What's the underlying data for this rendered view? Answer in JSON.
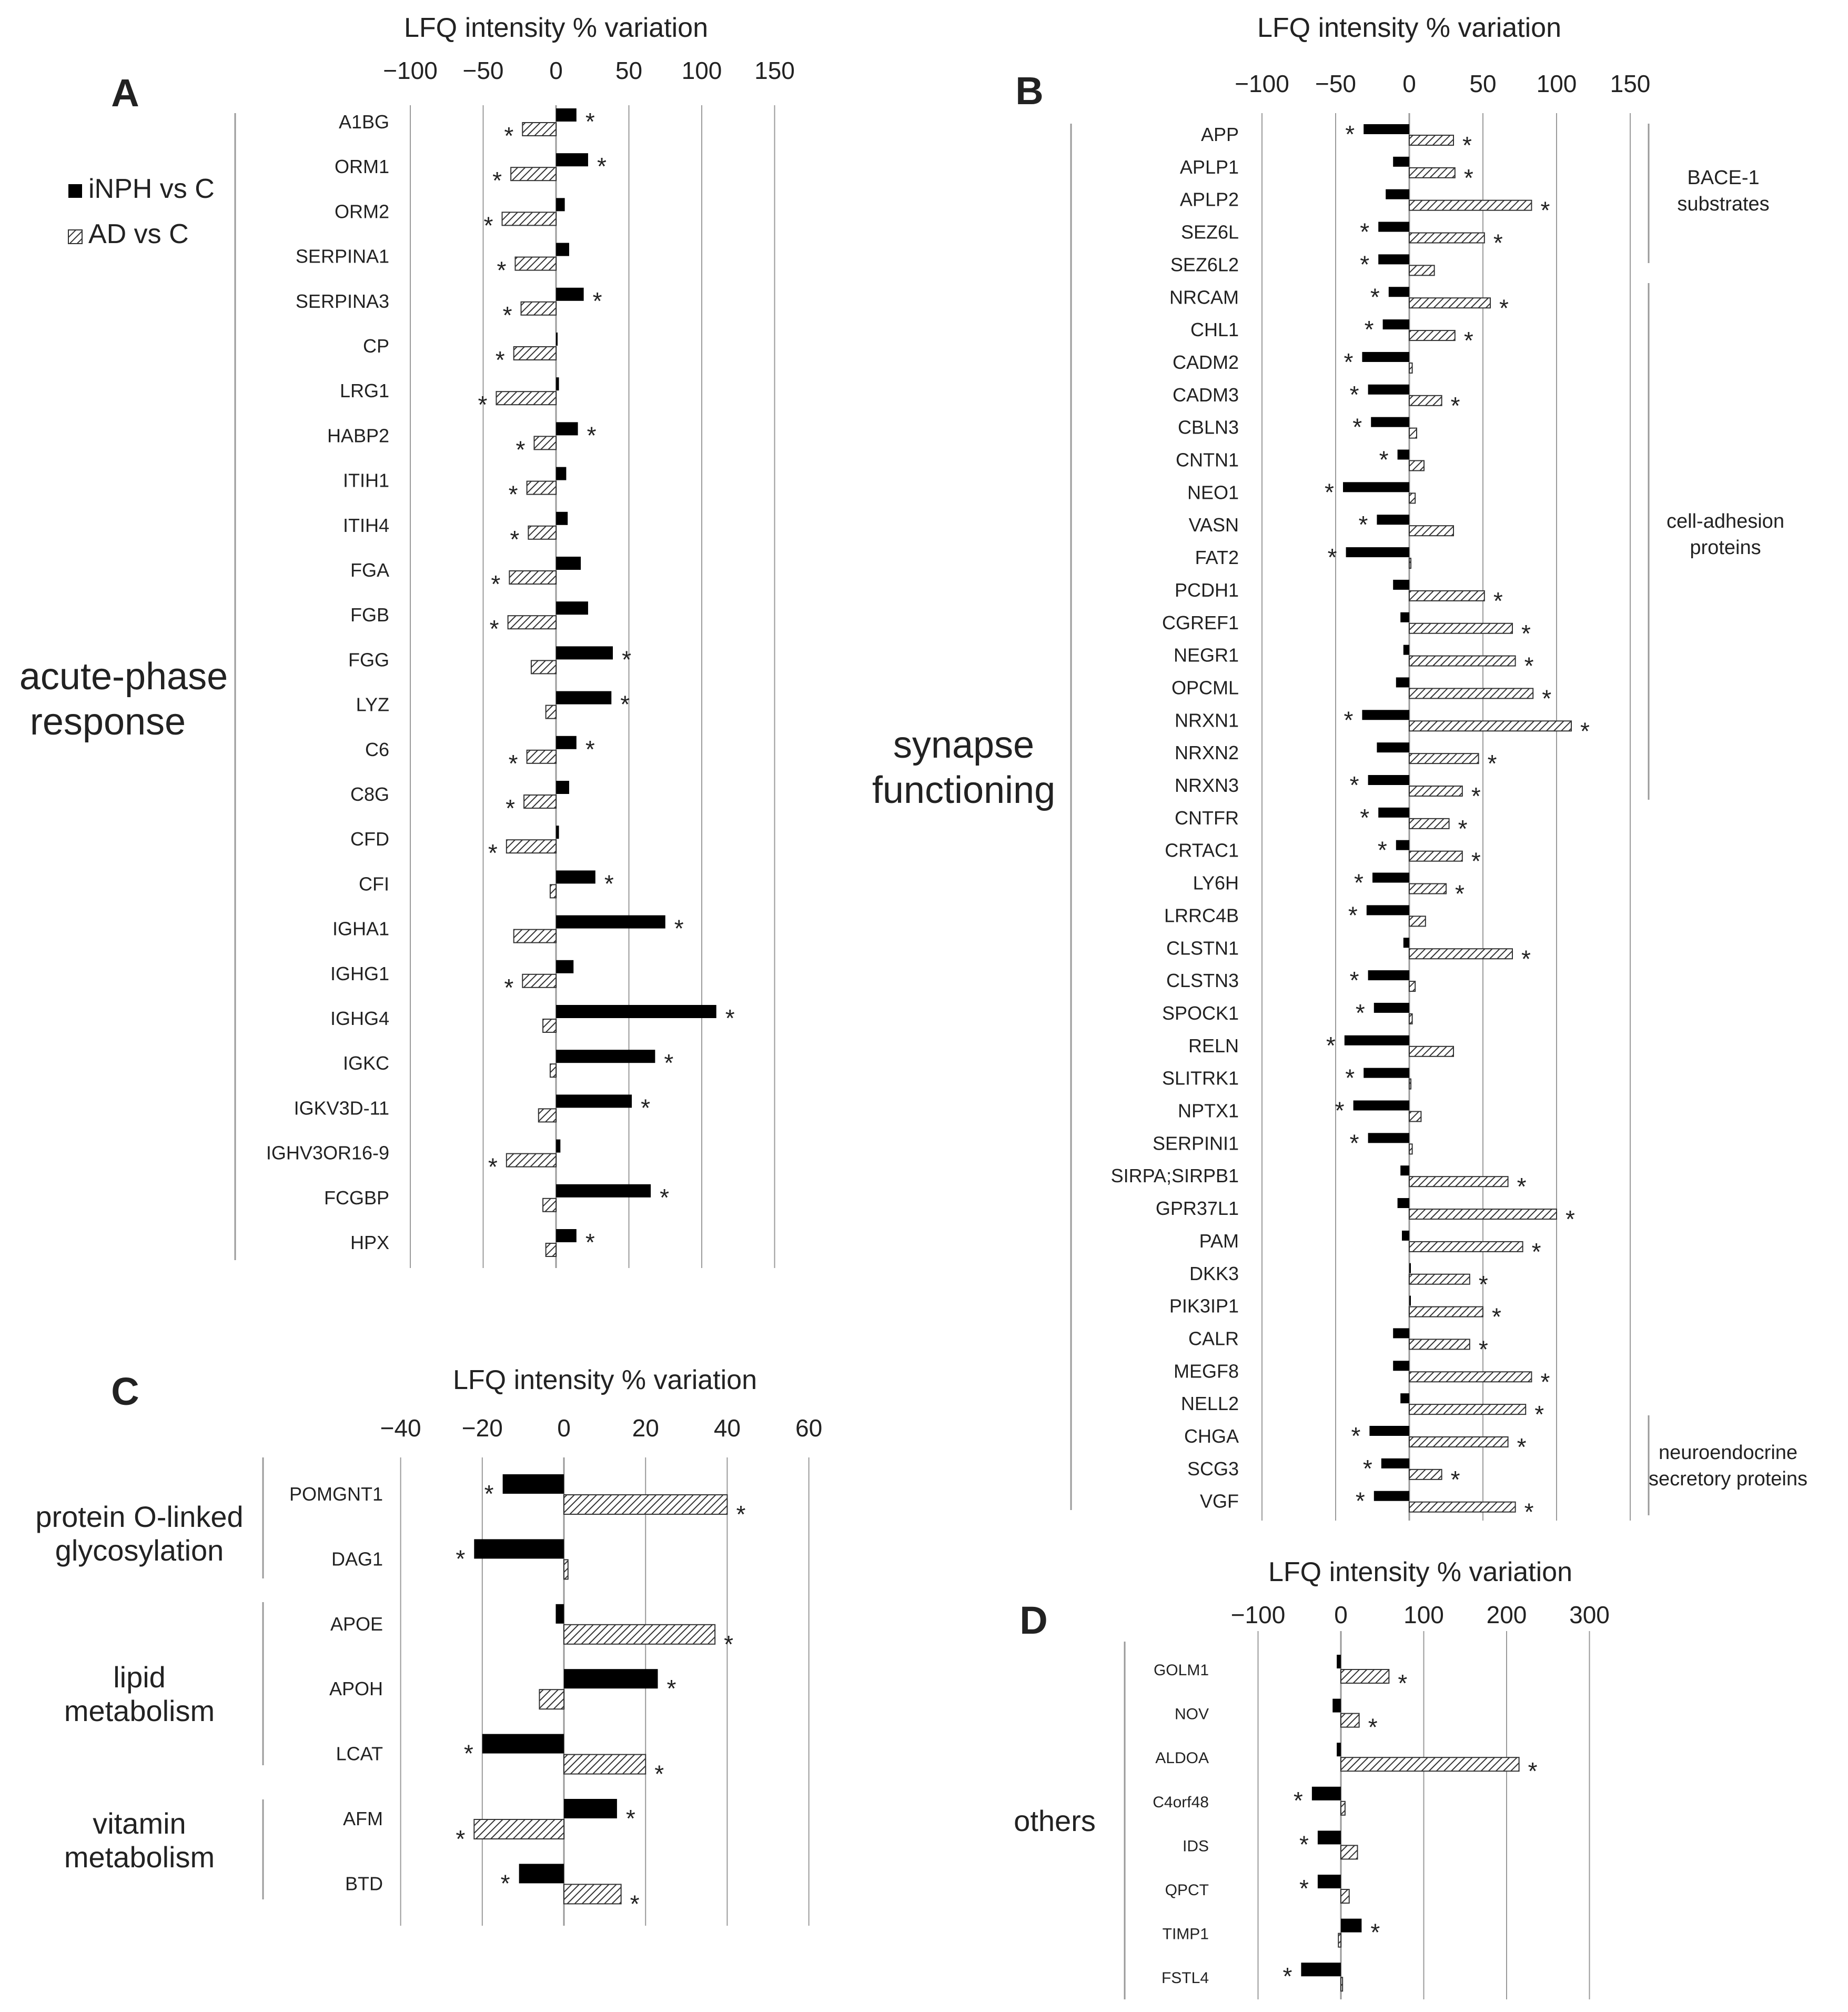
{
  "colors": {
    "inph": "#000000",
    "ad_stroke": "#333333",
    "grid": "#9a9a9a"
  },
  "legend": {
    "inph": "iNPH vs C",
    "ad": "AD vs C"
  },
  "chart_data": [
    {
      "panel": "A",
      "type": "bar",
      "orientation": "horizontal",
      "xlabel": "LFQ intensity % variation",
      "xlim": [
        -100,
        150
      ],
      "xticks": [
        -100,
        -50,
        0,
        50,
        100,
        150
      ],
      "group_label": "acute-phase response",
      "categories": [
        "A1BG",
        "ORM1",
        "ORM2",
        "SERPINA1",
        "SERPINA3",
        "CP",
        "LRG1",
        "HABP2",
        "ITIH1",
        "ITIH4",
        "FGA",
        "FGB",
        "FGG",
        "LYZ",
        "C6",
        "C8G",
        "CFD",
        "CFI",
        "IGHA1",
        "IGHG1",
        "IGHG4",
        "IGKC",
        "IGKV3D-11",
        "IGHV3OR16-9",
        "FCGBP",
        "HPX"
      ],
      "series": [
        {
          "name": "iNPH vs C",
          "values": [
            14,
            22,
            6,
            9,
            19,
            1,
            2,
            15,
            7,
            8,
            17,
            22,
            39,
            38,
            14,
            9,
            2,
            27,
            75,
            12,
            110,
            68,
            52,
            3,
            65,
            14
          ],
          "significant": [
            true,
            true,
            false,
            false,
            true,
            false,
            false,
            true,
            false,
            false,
            false,
            false,
            true,
            true,
            true,
            false,
            false,
            true,
            true,
            false,
            true,
            true,
            true,
            false,
            true,
            true
          ]
        },
        {
          "name": "AD vs C",
          "values": [
            -23,
            -31,
            -37,
            -28,
            -24,
            -29,
            -41,
            -15,
            -20,
            -19,
            -32,
            -33,
            -17,
            -7,
            -20,
            -22,
            -34,
            -4,
            -29,
            -23,
            -9,
            -4,
            -12,
            -34,
            -9,
            -7
          ],
          "significant": [
            true,
            true,
            true,
            true,
            true,
            true,
            true,
            true,
            true,
            true,
            true,
            true,
            false,
            false,
            true,
            true,
            true,
            false,
            false,
            true,
            false,
            false,
            false,
            true,
            false,
            false
          ]
        }
      ]
    },
    {
      "panel": "B",
      "type": "bar",
      "orientation": "horizontal",
      "xlabel": "LFQ intensity % variation",
      "xlim": [
        -100,
        150
      ],
      "xticks": [
        -100,
        -50,
        0,
        50,
        100,
        150
      ],
      "group_label": "synapse functioning",
      "side_groups": [
        "BACE-1 substrates",
        "cell-adhesion proteins",
        "neuroendocrine secretory proteins"
      ],
      "categories": [
        "APP",
        "APLP1",
        "APLP2",
        "SEZ6L",
        "SEZ6L2",
        "NRCAM",
        "CHL1",
        "CADM2",
        "CADM3",
        "CBLN3",
        "CNTN1",
        "NEO1",
        "VASN",
        "FAT2",
        "PCDH1",
        "CGREF1",
        "NEGR1",
        "OPCML",
        "NRXN1",
        "NRXN2",
        "NRXN3",
        "CNTFR",
        "CRTAC1",
        "LY6H",
        "LRRC4B",
        "CLSTN1",
        "CLSTN3",
        "SPOCK1",
        "RELN",
        "SLITRK1",
        "NPTX1",
        "SERPINI1",
        "SIRPA;SIRPB1",
        "GPR37L1",
        "PAM",
        "DKK3",
        "PIK3IP1",
        "CALR",
        "MEGF8",
        "NELL2",
        "CHGA",
        "SCG3",
        "VGF"
      ],
      "series": [
        {
          "name": "iNPH vs C",
          "values": [
            -31,
            -11,
            -16,
            -21,
            -21,
            -14,
            -18,
            -32,
            -28,
            -26,
            -8,
            -45,
            -22,
            -43,
            -11,
            -6,
            -4,
            -9,
            -32,
            -22,
            -28,
            -21,
            -9,
            -25,
            -29,
            -4,
            -28,
            -24,
            -44,
            -31,
            -38,
            -28,
            -6,
            -8,
            -5,
            0,
            0,
            -11,
            -11,
            -6,
            -27,
            -19,
            -24
          ],
          "significant": [
            true,
            false,
            false,
            true,
            true,
            true,
            true,
            true,
            true,
            true,
            true,
            true,
            true,
            true,
            false,
            false,
            false,
            false,
            true,
            false,
            true,
            true,
            true,
            true,
            true,
            false,
            true,
            true,
            true,
            true,
            true,
            true,
            false,
            false,
            false,
            false,
            false,
            false,
            false,
            false,
            true,
            true,
            true
          ]
        },
        {
          "name": "AD vs C",
          "values": [
            30,
            31,
            83,
            51,
            17,
            55,
            31,
            2,
            22,
            5,
            10,
            4,
            30,
            0,
            51,
            70,
            72,
            84,
            110,
            47,
            36,
            27,
            36,
            25,
            11,
            70,
            4,
            2,
            30,
            1,
            8,
            2,
            67,
            100,
            77,
            41,
            50,
            41,
            83,
            79,
            67,
            22,
            72
          ],
          "significant": [
            true,
            true,
            true,
            true,
            false,
            true,
            true,
            false,
            true,
            false,
            false,
            false,
            false,
            false,
            true,
            true,
            true,
            true,
            true,
            true,
            true,
            true,
            true,
            true,
            false,
            true,
            false,
            false,
            false,
            false,
            false,
            false,
            true,
            true,
            true,
            true,
            true,
            true,
            true,
            true,
            true,
            true,
            true
          ]
        }
      ]
    },
    {
      "panel": "C",
      "type": "bar",
      "orientation": "horizontal",
      "xlabel": "LFQ intensity % variation",
      "xlim": [
        -40,
        60
      ],
      "xticks": [
        -40,
        -20,
        0,
        20,
        40,
        60
      ],
      "group_labels": [
        [
          "protein O-linked",
          "glycosylation"
        ],
        [
          "lipid",
          "metabolism"
        ],
        [
          "vitamin",
          "metabolism"
        ]
      ],
      "categories": [
        "POMGNT1",
        "DAG1",
        "APOE",
        "APOH",
        "LCAT",
        "AFM",
        "BTD"
      ],
      "series": [
        {
          "name": "iNPH vs C",
          "values": [
            -15,
            -22,
            -2,
            23,
            -20,
            13,
            -11
          ],
          "significant": [
            true,
            true,
            false,
            true,
            true,
            true,
            true
          ]
        },
        {
          "name": "AD vs C",
          "values": [
            40,
            1,
            37,
            -6,
            20,
            -22,
            14
          ],
          "significant": [
            true,
            false,
            true,
            false,
            true,
            true,
            true
          ]
        }
      ]
    },
    {
      "panel": "D",
      "type": "bar",
      "orientation": "horizontal",
      "xlabel": "LFQ intensity % variation",
      "xlim": [
        -100,
        300
      ],
      "xticks": [
        -100,
        0,
        100,
        200,
        300
      ],
      "group_label": "others",
      "categories": [
        "GOLM1",
        "NOV",
        "ALDOA",
        "C4orf48",
        "IDS",
        "QPCT",
        "TIMP1",
        "FSTL4"
      ],
      "series": [
        {
          "name": "iNPH vs C",
          "values": [
            -5,
            -10,
            -5,
            -35,
            -28,
            -28,
            25,
            -48
          ],
          "significant": [
            false,
            false,
            false,
            true,
            true,
            true,
            true,
            true
          ]
        },
        {
          "name": "AD vs C",
          "values": [
            58,
            22,
            215,
            5,
            20,
            10,
            -3,
            2
          ],
          "significant": [
            true,
            true,
            true,
            false,
            false,
            false,
            false,
            false
          ]
        }
      ]
    }
  ]
}
